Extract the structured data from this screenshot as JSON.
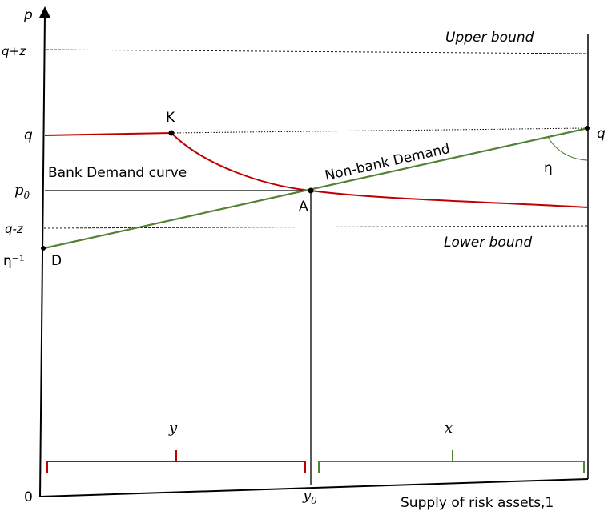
{
  "axes": {
    "y_label": "p",
    "x_origin": "0",
    "x_label": "Supply of risk assets,1"
  },
  "bounds": {
    "upper": "Upper bound",
    "lower": "Lower bound"
  },
  "y_ticks": {
    "q_plus_z": "q+z",
    "q": "q",
    "p0": "p",
    "p0_sub": "0",
    "q_minus_z": "q-z",
    "eta_inv": "η⁻¹"
  },
  "points": {
    "K": "K",
    "A": "A",
    "D": "D",
    "q_right": "q"
  },
  "curves": {
    "bank": "Bank Demand curve",
    "nonbank": "Non-bank Demand",
    "eta": "η"
  },
  "x_markers": {
    "y0": "y",
    "y0_sub": "0"
  },
  "braces": {
    "y": "y",
    "x": "x"
  },
  "colors": {
    "bank": "#c00000",
    "nonbank": "#548235",
    "axis": "#000000"
  }
}
